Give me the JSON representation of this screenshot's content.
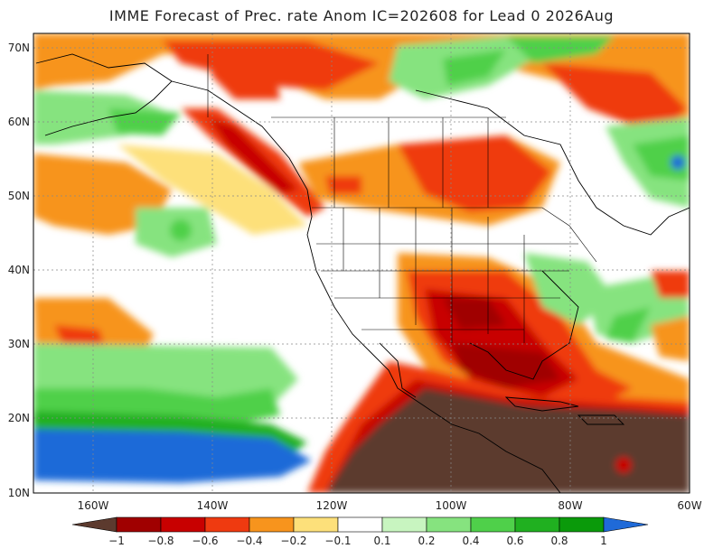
{
  "title": "IMME Forecast of Prec. rate Anom IC=202608 for Lead 0 2026Aug",
  "lat_labels": [
    "70N",
    "60N",
    "50N",
    "40N",
    "30N",
    "20N",
    "10N"
  ],
  "lon_labels": [
    "160W",
    "140W",
    "120W",
    "100W",
    "80W",
    "60W"
  ],
  "colorbar": {
    "labels": [
      "−1",
      "−0.8",
      "−0.6",
      "−0.4",
      "−0.2",
      "−0.1",
      "0.1",
      "0.2",
      "0.4",
      "0.6",
      "0.8",
      "1"
    ],
    "colors": [
      "#5c3a2e",
      "#a00000",
      "#c80000",
      "#ef3a10",
      "#f7941d",
      "#fde07a",
      "#ffffff",
      "#c8f5c0",
      "#86e37f",
      "#4fd04a",
      "#20b020",
      "#0a9a0a",
      "#1f6ad8"
    ]
  },
  "colors": {
    "dry_extreme": "#5c3a2e",
    "wet_extreme": "#1f6ad8",
    "neutral": "#ffffff"
  }
}
